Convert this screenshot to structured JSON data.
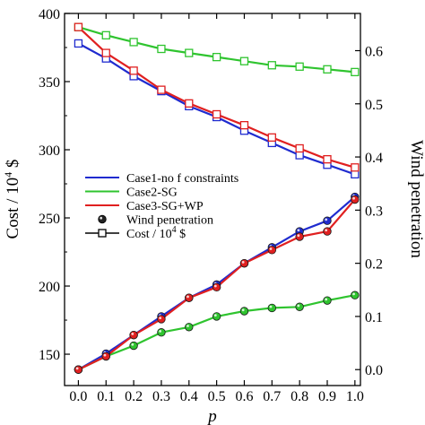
{
  "chart_data": {
    "type": "line",
    "xlabel": "p",
    "ylabel_left": "Cost / 10",
    "ylabel_left_sup": "4",
    "ylabel_left_unit": " $",
    "ylabel_right": "Wind penetration",
    "xlim": [
      -0.05,
      1.02
    ],
    "ylim_left": [
      127,
      400
    ],
    "ylim_right": [
      -0.03,
      0.67
    ],
    "x": [
      0.0,
      0.1,
      0.2,
      0.3,
      0.4,
      0.5,
      0.6,
      0.7,
      0.8,
      0.9,
      1.0
    ],
    "x_ticks": [
      "0.0",
      "0.1",
      "0.2",
      "0.3",
      "0.4",
      "0.5",
      "0.6",
      "0.7",
      "0.8",
      "0.9",
      "1.0"
    ],
    "y_left_ticks": [
      150,
      200,
      250,
      300,
      350,
      400
    ],
    "y_right_ticks": [
      "0.0",
      "0.1",
      "0.2",
      "0.3",
      "0.4",
      "0.5",
      "0.6"
    ],
    "y_right_tick_values": [
      0.0,
      0.1,
      0.2,
      0.3,
      0.4,
      0.5,
      0.6
    ],
    "grid": false,
    "series": [
      {
        "name": "Case1-no f constraints",
        "color": "#1f2bcf",
        "axis": "left",
        "marker": "square",
        "values": [
          378,
          367,
          354,
          343,
          332,
          324,
          314,
          305,
          296,
          289,
          282
        ]
      },
      {
        "name": "Case2-SG",
        "color": "#2fc42f",
        "axis": "left",
        "marker": "square",
        "values": [
          390,
          384,
          379,
          374,
          371,
          368,
          365,
          362,
          361,
          359,
          357
        ]
      },
      {
        "name": "Case3-SG+WP",
        "color": "#e02020",
        "axis": "left",
        "marker": "square",
        "values": [
          390,
          371,
          358,
          344,
          334,
          326,
          318,
          309,
          301,
          293,
          287
        ]
      },
      {
        "name": "Case1-no f constraints",
        "color": "#1f2bcf",
        "axis": "right",
        "marker": "ball",
        "values": [
          0.0,
          0.03,
          0.065,
          0.1,
          0.135,
          0.16,
          0.2,
          0.23,
          0.26,
          0.28,
          0.325
        ]
      },
      {
        "name": "Case2-SG",
        "color": "#2fc42f",
        "axis": "right",
        "marker": "ball",
        "values": [
          0.0,
          0.025,
          0.045,
          0.07,
          0.08,
          0.1,
          0.11,
          0.116,
          0.118,
          0.13,
          0.14
        ]
      },
      {
        "name": "Case3-SG+WP",
        "color": "#e02020",
        "axis": "right",
        "marker": "ball",
        "values": [
          0.0,
          0.025,
          0.065,
          0.095,
          0.135,
          0.155,
          0.2,
          0.225,
          0.25,
          0.26,
          0.32
        ]
      }
    ],
    "legend": {
      "placement": "center-left",
      "entries": [
        {
          "label": "Case1-no f constraints",
          "color": "#1f2bcf",
          "kind": "line"
        },
        {
          "label": "Case2-SG",
          "color": "#2fc42f",
          "kind": "line"
        },
        {
          "label": "Case3-SG+WP",
          "color": "#e02020",
          "kind": "line"
        },
        {
          "label": "Wind penetration",
          "color": "#000000",
          "kind": "ball"
        },
        {
          "label": "Cost / 10",
          "label_sup": "4",
          "label_unit": " $",
          "color": "#000000",
          "kind": "square"
        }
      ]
    }
  }
}
